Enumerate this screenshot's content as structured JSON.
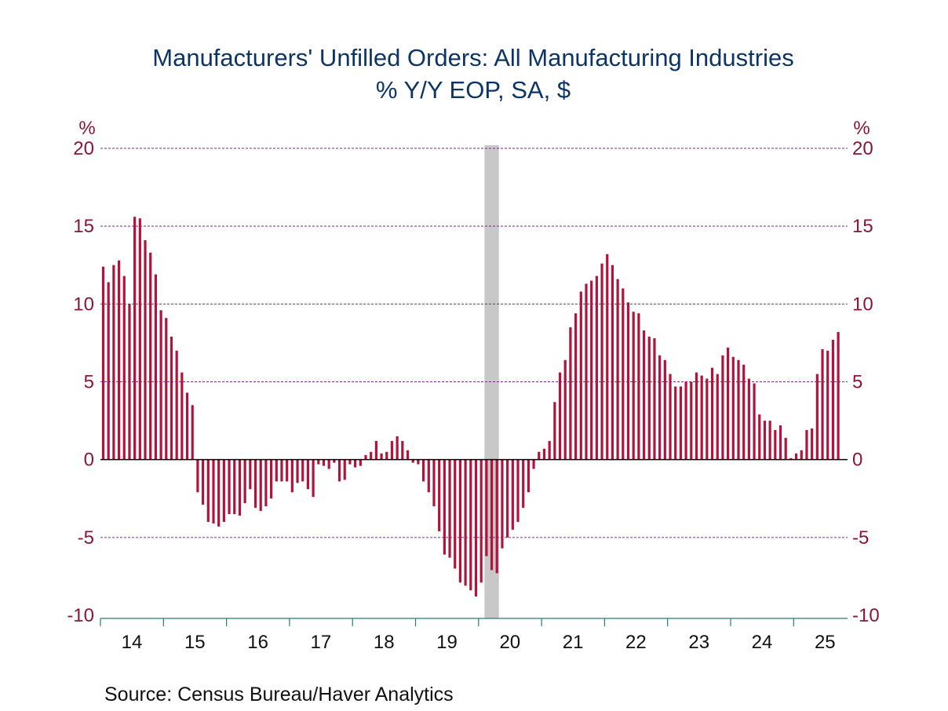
{
  "chart_data": {
    "type": "bar",
    "title": "Manufacturers' Unfilled Orders: All Manufacturing Industries",
    "subtitle": "% Y/Y   EOP, SA, $",
    "xlabel": "",
    "ylabel_left": "%",
    "ylabel_right": "%",
    "ylim": [
      -10,
      20
    ],
    "yticks": [
      20,
      15,
      10,
      5,
      0,
      -5,
      -10
    ],
    "ytick_labels": [
      "20",
      "15",
      "10",
      "5",
      "0",
      "-5",
      "-10"
    ],
    "grid": true,
    "frequency": "monthly",
    "start": "2014-01",
    "end": "2025-09",
    "xtick_labels": [
      "14",
      "15",
      "16",
      "17",
      "18",
      "19",
      "20",
      "21",
      "22",
      "23",
      "24",
      "25"
    ],
    "recession_shading": {
      "start": "2020-02",
      "end": "2020-04"
    },
    "series": [
      {
        "name": "Unfilled Orders % Y/Y",
        "color": "#b0143c",
        "values": [
          12.4,
          11.4,
          12.5,
          12.8,
          11.8,
          10.0,
          15.6,
          15.5,
          14.1,
          13.3,
          11.9,
          9.6,
          9.1,
          7.9,
          7.0,
          5.6,
          4.3,
          3.5,
          -2.1,
          -2.9,
          -4.0,
          -4.1,
          -4.3,
          -4.0,
          -3.5,
          -3.5,
          -3.6,
          -2.8,
          -1.9,
          -3.1,
          -3.3,
          -3.0,
          -2.5,
          -1.4,
          -1.4,
          -1.4,
          -2.1,
          -1.5,
          -1.4,
          -1.9,
          -2.4,
          -0.3,
          -0.4,
          -0.6,
          -0.2,
          -1.4,
          -1.3,
          -0.3,
          -0.5,
          -0.4,
          0.3,
          0.5,
          1.2,
          0.4,
          0.5,
          1.2,
          1.5,
          1.2,
          0.6,
          -0.2,
          -0.3,
          -1.4,
          -2.1,
          -3.0,
          -4.6,
          -6.1,
          -6.3,
          -7.0,
          -7.9,
          -8.1,
          -8.4,
          -8.8,
          -7.9,
          -6.2,
          -7.1,
          -7.3,
          -5.7,
          -5.0,
          -4.5,
          -4.0,
          -3.1,
          -2.1,
          -0.6,
          0.5,
          0.7,
          1.2,
          3.7,
          5.6,
          6.4,
          8.5,
          9.4,
          10.8,
          11.3,
          11.5,
          11.8,
          12.6,
          13.2,
          12.5,
          11.6,
          11.0,
          10.1,
          9.5,
          9.4,
          8.3,
          7.9,
          7.8,
          6.7,
          6.4,
          5.5,
          4.7,
          4.7,
          5.0,
          5.0,
          5.6,
          5.4,
          5.2,
          5.9,
          5.5,
          6.7,
          7.2,
          6.6,
          6.4,
          6.1,
          5.2,
          4.9,
          2.9,
          2.5,
          2.5,
          1.9,
          2.2,
          1.4,
          0.1,
          0.4,
          0.6,
          1.9,
          2.0,
          5.5,
          7.1,
          7.0,
          7.7,
          8.2
        ]
      }
    ],
    "source": "Source:  Census Bureau/Haver Analytics",
    "colors": {
      "title": "#0d3466",
      "bars": "#b0143c",
      "tick_labels": "#8b1538",
      "grid": "#7b2a8c",
      "x_axis": "#2a7a7a",
      "recession": "#c8c8c8"
    }
  }
}
